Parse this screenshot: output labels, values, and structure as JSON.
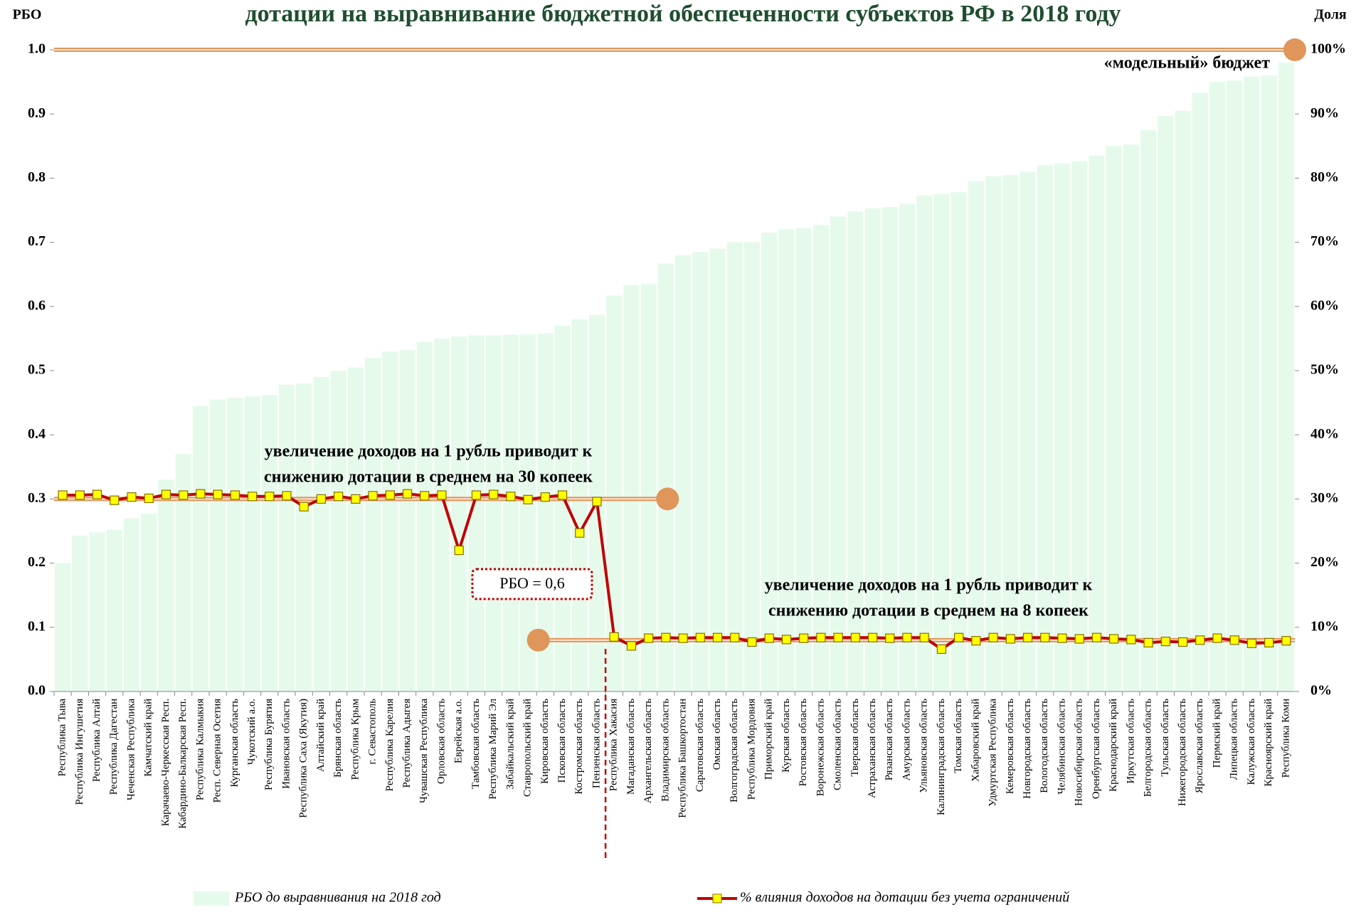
{
  "chart_data": {
    "type": "bar_line",
    "title": "дотации на выравнивание бюджетной обеспеченности субъектов РФ в 2018 году",
    "y_axis_label": "РБО",
    "y2_axis_label": "Доля",
    "categories": [
      "Республика Тыва",
      "Республика Ингушетия",
      "Республика Алтай",
      "Республика Дагестан",
      "Чеченская Республика",
      "Камчатский край",
      "Карачаево-Черкесская Респ.",
      "Кабардино-Балкарская Респ.",
      "Республика Калмыкия",
      "Респ. Северная Осетия",
      "Курганская область",
      "Чукотский а.о.",
      "Республика Бурятия",
      "Ивановская область",
      "Республика Саха (Якутия)",
      "Алтайский край",
      "Брянская область",
      "Республика Крым",
      "г. Севастополь",
      "Республика Карелия",
      "Республика Адыгея",
      "Чувашская Республика",
      "Орловская область",
      "Еврейская а.о.",
      "Тамбовская область",
      "Республика Марий Эл",
      "Забайкальский край",
      "Ставропольский край",
      "Кировская область",
      "Псковская область",
      "Костромская область",
      "Пензенская область",
      "Республика Хакасия",
      "Магаданская область",
      "Архангельская область",
      "Владимирская область",
      "Республика Башкортостан",
      "Саратовская область",
      "Омская область",
      "Волгоградская область",
      "Республика Мордовия",
      "Приморский край",
      "Курская область",
      "Ростовская область",
      "Воронежская область",
      "Смоленская область",
      "Тверская область",
      "Астраханская область",
      "Рязанская область",
      "Амурская область",
      "Ульяновская область",
      "Калининградская область",
      "Томская область",
      "Хабаровский край",
      "Удмуртская Республика",
      "Кемеровская область",
      "Новгородская область",
      "Вологодская область",
      "Челябинская область",
      "Новосибирская область",
      "Оренбургская область",
      "Краснодарский край",
      "Иркутская область",
      "Белгородская область",
      "Тульская область",
      "Нижегородская область",
      "Ярославская область",
      "Пермский край",
      "Липецкая область",
      "Калужская область",
      "Красноярский край",
      "Республика Коми"
    ],
    "series": [
      {
        "name": "РБО до выравнивания на 2018 год",
        "type": "bar",
        "color": "#e6faec",
        "values": [
          0.2,
          0.243,
          0.248,
          0.252,
          0.27,
          0.277,
          0.33,
          0.37,
          0.445,
          0.455,
          0.458,
          0.46,
          0.462,
          0.478,
          0.48,
          0.49,
          0.5,
          0.505,
          0.52,
          0.53,
          0.532,
          0.545,
          0.55,
          0.553,
          0.555,
          0.555,
          0.556,
          0.557,
          0.558,
          0.57,
          0.58,
          0.587,
          0.617,
          0.633,
          0.635,
          0.667,
          0.68,
          0.685,
          0.69,
          0.7,
          0.7,
          0.715,
          0.72,
          0.722,
          0.727,
          0.74,
          0.748,
          0.753,
          0.755,
          0.76,
          0.773,
          0.775,
          0.778,
          0.795,
          0.803,
          0.805,
          0.81,
          0.82,
          0.823,
          0.826,
          0.835,
          0.85,
          0.852,
          0.875,
          0.897,
          0.905,
          0.933,
          0.95,
          0.952,
          0.958,
          0.96,
          0.98
        ]
      },
      {
        "name": "% влияния доходов на дотации без учета ограничений",
        "type": "line",
        "axis": "y2",
        "color": "#c00000",
        "marker_color": "#ffff00",
        "values": [
          30.6,
          30.6,
          30.7,
          29.8,
          30.3,
          30.1,
          30.7,
          30.6,
          30.8,
          30.7,
          30.6,
          30.4,
          30.4,
          30.5,
          28.8,
          30.0,
          30.4,
          30.0,
          30.5,
          30.6,
          30.8,
          30.5,
          30.6,
          22.0,
          30.6,
          30.7,
          30.4,
          29.9,
          30.3,
          30.6,
          24.7,
          29.6,
          8.5,
          7.1,
          8.3,
          8.4,
          8.3,
          8.4,
          8.4,
          8.4,
          7.7,
          8.3,
          8.1,
          8.3,
          8.4,
          8.4,
          8.4,
          8.4,
          8.3,
          8.4,
          8.4,
          6.6,
          8.4,
          7.9,
          8.4,
          8.2,
          8.4,
          8.4,
          8.3,
          8.2,
          8.4,
          8.2,
          8.1,
          7.6,
          7.8,
          7.7,
          8.0,
          8.3,
          8.0,
          7.5,
          7.6,
          7.9
        ]
      }
    ],
    "ylim": [
      0,
      1
    ],
    "yticks": [
      {
        "value": 0,
        "label": "0.0"
      },
      0.1,
      0.2,
      0.3,
      0.4,
      0.5,
      0.6,
      0.7,
      0.8,
      0.9,
      {
        "value": 1,
        "label": "1.0"
      }
    ],
    "y2lim": [
      0,
      100
    ],
    "y2ticks": [
      {
        "value": 0,
        "label": "0%"
      },
      {
        "value": 10,
        "label": "10%"
      },
      {
        "value": 20,
        "label": "20%"
      },
      {
        "value": 30,
        "label": "30%"
      },
      {
        "value": 40,
        "label": "40%"
      },
      {
        "value": 50,
        "label": "50%"
      },
      {
        "value": 60,
        "label": "60%"
      },
      {
        "value": 70,
        "label": "70%"
      },
      {
        "value": 80,
        "label": "80%"
      },
      {
        "value": 90,
        "label": "90%"
      },
      {
        "value": 100,
        "label": "100%"
      }
    ],
    "reference_lines": [
      {
        "value": 1.0,
        "label": "«модельный» бюджет"
      },
      {
        "value": 0.3,
        "label": [
          "увеличение доходов на 1 рубль приводит к",
          "снижению дотации в среднем на 30 копеек"
        ]
      },
      {
        "value": 0.08,
        "label": [
          "увеличение доходов на 1 рубль приводит к",
          "снижению дотации в среднем на 8 копеек"
        ]
      }
    ],
    "threshold_annotation": "РБО = 0,6",
    "legend": "bottom"
  }
}
